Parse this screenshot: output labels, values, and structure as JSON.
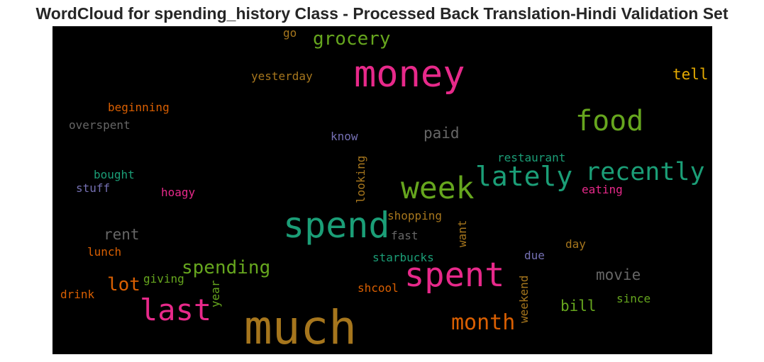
{
  "title": "WordCloud for spending_history Class - Processed Back Translation-Hindi Validation Set",
  "words": [
    {
      "text": "much",
      "color": "#a6761d"
    },
    {
      "text": "spend",
      "color": "#1b9e77"
    },
    {
      "text": "spent",
      "color": "#e7298a"
    },
    {
      "text": "money",
      "color": "#e7298a"
    },
    {
      "text": "week",
      "color": "#66a61e"
    },
    {
      "text": "last",
      "color": "#e7298a"
    },
    {
      "text": "lately",
      "color": "#1b9e77"
    },
    {
      "text": "recently",
      "color": "#1b9e77"
    },
    {
      "text": "food",
      "color": "#66a61e"
    },
    {
      "text": "month",
      "color": "#d95f02"
    },
    {
      "text": "spending",
      "color": "#66a61e"
    },
    {
      "text": "grocery",
      "color": "#66a61e"
    },
    {
      "text": "lot",
      "color": "#d95f02"
    },
    {
      "text": "movie",
      "color": "#666666"
    },
    {
      "text": "rent",
      "color": "#666666"
    },
    {
      "text": "bill",
      "color": "#66a61e"
    },
    {
      "text": "paid",
      "color": "#666666"
    },
    {
      "text": "tell",
      "color": "#e6ab02"
    },
    {
      "text": "restaurant",
      "color": "#1b9e77"
    },
    {
      "text": "eating",
      "color": "#e7298a"
    },
    {
      "text": "shopping",
      "color": "#a6761d"
    },
    {
      "text": "starbucks",
      "color": "#1b9e77"
    },
    {
      "text": "fast",
      "color": "#666666"
    },
    {
      "text": "shcool",
      "color": "#d95f02"
    },
    {
      "text": "yesterday",
      "color": "#a6761d"
    },
    {
      "text": "beginning",
      "color": "#d95f02"
    },
    {
      "text": "overspent",
      "color": "#666666"
    },
    {
      "text": "know",
      "color": "#7570b3"
    },
    {
      "text": "bought",
      "color": "#1b9e77"
    },
    {
      "text": "stuff",
      "color": "#7570b3"
    },
    {
      "text": "hoagy",
      "color": "#e7298a"
    },
    {
      "text": "lunch",
      "color": "#d95f02"
    },
    {
      "text": "giving",
      "color": "#66a61e"
    },
    {
      "text": "drink",
      "color": "#d95f02"
    },
    {
      "text": "due",
      "color": "#7570b3"
    },
    {
      "text": "day",
      "color": "#a6761d"
    },
    {
      "text": "since",
      "color": "#66a61e"
    },
    {
      "text": "go",
      "color": "#a6761d"
    },
    {
      "text": "looking",
      "color": "#a6761d"
    },
    {
      "text": "want",
      "color": "#a6761d"
    },
    {
      "text": "weekend",
      "color": "#a6761d"
    },
    {
      "text": "year",
      "color": "#66a61e"
    }
  ]
}
